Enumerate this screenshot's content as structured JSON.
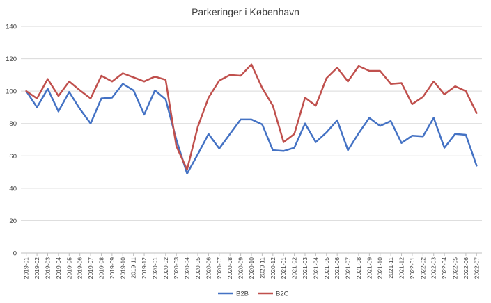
{
  "chart_data": {
    "type": "line",
    "title": "Parkeringer i København",
    "xlabel": "",
    "ylabel": "",
    "ylim": [
      0,
      140
    ],
    "yticks": [
      0,
      20,
      40,
      60,
      80,
      100,
      120,
      140
    ],
    "grid": true,
    "legend": "bottom",
    "categories": [
      "2019-01",
      "2019-02",
      "2019-03",
      "2019-04",
      "2019-05",
      "2019-06",
      "2019-07",
      "2019-08",
      "2019-09",
      "2019-10",
      "2019-11",
      "2019-12",
      "2020-01",
      "2020-02",
      "2020-03",
      "2020-04",
      "2020-05",
      "2020-06",
      "2020-07",
      "2020-08",
      "2020-09",
      "2020-10",
      "2020-11",
      "2020-12",
      "2021-01",
      "2021-02",
      "2021-03",
      "2021-04",
      "2021-05",
      "2021-06",
      "2021-07",
      "2021-08",
      "2021-09",
      "2021-10",
      "2021-11",
      "2021-12",
      "2022-01",
      "2022-02",
      "2022-03",
      "2022-04",
      "2022-05",
      "2022-06",
      "2022-07"
    ],
    "series": [
      {
        "name": "B2B",
        "color": "#4472c4",
        "values": [
          100,
          90,
          101.5,
          87.5,
          99.5,
          89,
          80,
          95.5,
          96,
          104.5,
          100.5,
          85.5,
          100.5,
          95,
          70,
          49,
          61,
          73.5,
          64.5,
          73.5,
          82.5,
          82.5,
          79.5,
          63.5,
          63,
          65,
          80,
          68.5,
          74.5,
          82,
          63.5,
          74,
          83.5,
          78.5,
          81.5,
          68,
          72.5,
          72,
          83.5,
          65,
          73.5,
          73,
          54
        ]
      },
      {
        "name": "B2C",
        "color": "#c0504d",
        "values": [
          100,
          95.5,
          107.5,
          97,
          106,
          100.5,
          95.5,
          109.5,
          106,
          111,
          108.5,
          106,
          109,
          107,
          66,
          51.5,
          78,
          96,
          106.5,
          110,
          109.5,
          116.5,
          102,
          91,
          68.5,
          73.5,
          96,
          91,
          108,
          114.5,
          106,
          115.5,
          112.5,
          112.5,
          104.5,
          105,
          92,
          96.5,
          106,
          98,
          103,
          100,
          86.5
        ]
      }
    ]
  }
}
